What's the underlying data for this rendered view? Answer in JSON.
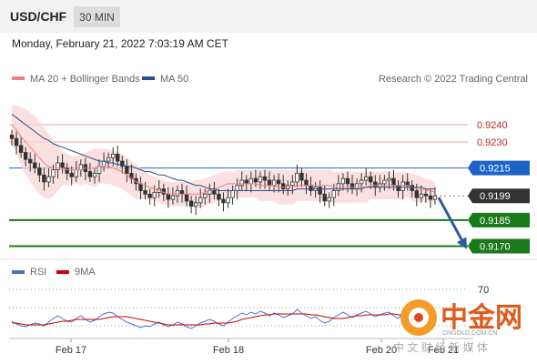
{
  "header": {
    "symbol": "USD/CHF",
    "timeframe": "30 MIN",
    "datetime": "Monday, February 21, 2022 7:03:19 AM CET"
  },
  "colors": {
    "bollinger": "#f08080",
    "bollinger_fill": "#f9d5d5",
    "ma50": "#2b4f8c",
    "resistance": "#f0a0a0",
    "pivot": "#1e64c8",
    "support": "#1a7a1a",
    "last": "#333333",
    "candle_up": "#ffffff",
    "candle_down": "#333333",
    "rsi": "#4a70d0",
    "rsi_ma": "#cc0000",
    "arrow": "#2c5c9c"
  },
  "chart_data": [
    {
      "type": "line",
      "subtype": "candlestick",
      "legend": [
        {
          "name": "MA 20 + Bollinger Bands",
          "color": "#f08080"
        },
        {
          "name": "MA 50",
          "color": "#2b4f8c"
        }
      ],
      "source": "Research © 2022 Trading Central",
      "x_ticks": [
        "Feb 17",
        "Feb 18",
        "Feb 20",
        "Feb 21"
      ],
      "ylim": [
        0.9164,
        0.9262
      ],
      "levels": [
        {
          "value": 0.924,
          "label": "0.9240",
          "kind": "resistance"
        },
        {
          "value": 0.923,
          "label": "0.9230",
          "kind": "resistance"
        },
        {
          "value": 0.9215,
          "label": "0.9215",
          "kind": "pivot"
        },
        {
          "value": 0.9199,
          "label": "0.9199",
          "kind": "last"
        },
        {
          "value": 0.9185,
          "label": "0.9185",
          "kind": "support"
        },
        {
          "value": 0.917,
          "label": "0.9170",
          "kind": "support"
        }
      ],
      "close": [
        0.9232,
        0.9228,
        0.9224,
        0.922,
        0.9218,
        0.9215,
        0.9211,
        0.9207,
        0.921,
        0.9214,
        0.9218,
        0.9215,
        0.9212,
        0.921,
        0.9214,
        0.9217,
        0.9213,
        0.921,
        0.9212,
        0.9216,
        0.9219,
        0.9221,
        0.9223,
        0.9219,
        0.9216,
        0.9212,
        0.9209,
        0.9206,
        0.9202,
        0.92,
        0.9198,
        0.9201,
        0.9203,
        0.92,
        0.9197,
        0.9199,
        0.9202,
        0.92,
        0.9196,
        0.9193,
        0.9195,
        0.9198,
        0.92,
        0.9202,
        0.92,
        0.9197,
        0.9195,
        0.9198,
        0.9202,
        0.9205,
        0.9208,
        0.9206,
        0.9209,
        0.9207,
        0.921,
        0.9208,
        0.9205,
        0.9208,
        0.9206,
        0.9203,
        0.9205,
        0.9207,
        0.9212,
        0.9208,
        0.9205,
        0.9202,
        0.9204,
        0.92,
        0.9196,
        0.9198,
        0.9202,
        0.9206,
        0.9209,
        0.9206,
        0.9203,
        0.9206,
        0.9208,
        0.921,
        0.9207,
        0.9204,
        0.9206,
        0.9208,
        0.9209,
        0.9205,
        0.9202,
        0.9207,
        0.9205,
        0.9202,
        0.9198,
        0.92,
        0.9199,
        0.9197,
        0.9199
      ],
      "ma20": [
        0.924,
        0.9237,
        0.9233,
        0.923,
        0.9227,
        0.9224,
        0.9221,
        0.9218,
        0.9216,
        0.9215,
        0.9215,
        0.9215,
        0.9214,
        0.9214,
        0.9214,
        0.9214,
        0.9215,
        0.9215,
        0.9215,
        0.9216,
        0.9216,
        0.9216,
        0.9215,
        0.9214,
        0.9213,
        0.9211,
        0.9209,
        0.9207,
        0.9206,
        0.9205,
        0.9204,
        0.9203,
        0.9202,
        0.9201,
        0.92,
        0.92,
        0.92,
        0.92,
        0.92,
        0.92,
        0.92,
        0.92,
        0.9201,
        0.9202,
        0.9203,
        0.9204,
        0.9205,
        0.9206,
        0.9206,
        0.9206,
        0.9206,
        0.9206,
        0.9206,
        0.9206,
        0.9205,
        0.9205,
        0.9205,
        0.9205,
        0.9204,
        0.9204,
        0.9204,
        0.9204,
        0.9205,
        0.9205,
        0.9205,
        0.9205,
        0.9205,
        0.9205,
        0.9205,
        0.9205,
        0.9204,
        0.9204,
        0.9204,
        0.9204,
        0.9204,
        0.9204,
        0.9204,
        0.9204,
        0.9205,
        0.9205,
        0.9205,
        0.9205,
        0.9205,
        0.9205,
        0.9205,
        0.9205,
        0.9205,
        0.9204,
        0.9203,
        0.9203,
        0.9202,
        0.9202,
        0.9201
      ],
      "bb_upper": [
        0.9251,
        0.9251,
        0.925,
        0.9249,
        0.9247,
        0.9245,
        0.9242,
        0.9238,
        0.9235,
        0.9231,
        0.9228,
        0.9225,
        0.9223,
        0.9222,
        0.9222,
        0.9223,
        0.9224,
        0.9225,
        0.9226,
        0.9226,
        0.9226,
        0.9226,
        0.9225,
        0.9224,
        0.9223,
        0.9221,
        0.9219,
        0.9217,
        0.9215,
        0.9213,
        0.9211,
        0.921,
        0.9209,
        0.9208,
        0.9207,
        0.9207,
        0.9207,
        0.9207,
        0.9207,
        0.9207,
        0.9208,
        0.9208,
        0.9209,
        0.921,
        0.9211,
        0.9212,
        0.9213,
        0.9213,
        0.9213,
        0.9214,
        0.9214,
        0.9214,
        0.9214,
        0.9214,
        0.9214,
        0.9214,
        0.9214,
        0.9214,
        0.9214,
        0.9214,
        0.9214,
        0.9214,
        0.9214,
        0.9214,
        0.9214,
        0.9214,
        0.9214,
        0.9214,
        0.9214,
        0.9214,
        0.9213,
        0.9213,
        0.9213,
        0.9213,
        0.9213,
        0.9213,
        0.9213,
        0.9213,
        0.9213,
        0.9213,
        0.9213,
        0.9213,
        0.9213,
        0.9213,
        0.9213,
        0.9213,
        0.9212,
        0.9212,
        0.9211,
        0.921,
        0.9209,
        0.9208,
        0.9207
      ],
      "bb_lower": [
        0.9229,
        0.9223,
        0.9216,
        0.9211,
        0.9207,
        0.9203,
        0.92,
        0.9198,
        0.9197,
        0.9199,
        0.9202,
        0.9205,
        0.9205,
        0.9206,
        0.9206,
        0.9205,
        0.9206,
        0.9205,
        0.9204,
        0.9206,
        0.9206,
        0.9206,
        0.9205,
        0.9204,
        0.9203,
        0.9201,
        0.9199,
        0.9197,
        0.9197,
        0.9197,
        0.9197,
        0.9196,
        0.9195,
        0.9194,
        0.9193,
        0.9193,
        0.9193,
        0.9193,
        0.9193,
        0.9193,
        0.9192,
        0.9192,
        0.9193,
        0.9194,
        0.9195,
        0.9196,
        0.9197,
        0.9199,
        0.9199,
        0.9198,
        0.9198,
        0.9198,
        0.9198,
        0.9198,
        0.9196,
        0.9196,
        0.9196,
        0.9196,
        0.9194,
        0.9194,
        0.9194,
        0.9194,
        0.9196,
        0.9196,
        0.9196,
        0.9196,
        0.9196,
        0.9196,
        0.9196,
        0.9196,
        0.9195,
        0.9195,
        0.9195,
        0.9195,
        0.9195,
        0.9195,
        0.9195,
        0.9195,
        0.9197,
        0.9197,
        0.9197,
        0.9197,
        0.9197,
        0.9197,
        0.9197,
        0.9197,
        0.9198,
        0.9196,
        0.9195,
        0.9196,
        0.9195,
        0.9196,
        0.9195
      ],
      "ma50": [
        0.9246,
        0.9244,
        0.9242,
        0.924,
        0.9238,
        0.9236,
        0.9234,
        0.9232,
        0.9231,
        0.9229,
        0.9228,
        0.9227,
        0.9226,
        0.9225,
        0.9224,
        0.9223,
        0.9222,
        0.9221,
        0.922,
        0.9219,
        0.9219,
        0.9218,
        0.9218,
        0.9217,
        0.9217,
        0.9216,
        0.9216,
        0.9215,
        0.9214,
        0.9213,
        0.9213,
        0.9212,
        0.9211,
        0.9211,
        0.921,
        0.9209,
        0.9208,
        0.9208,
        0.9207,
        0.9206,
        0.9205,
        0.9205,
        0.9204,
        0.9203,
        0.9203,
        0.9202,
        0.9202,
        0.9202,
        0.9202,
        0.9202,
        0.9202,
        0.9202,
        0.9202,
        0.9202,
        0.9202,
        0.9202,
        0.9202,
        0.9202,
        0.9202,
        0.9202,
        0.9202,
        0.9202,
        0.9203,
        0.9203,
        0.9203,
        0.9203,
        0.9203,
        0.9203,
        0.9203,
        0.9203,
        0.9203,
        0.9203,
        0.9203,
        0.9203,
        0.9203,
        0.9203,
        0.9203,
        0.9204,
        0.9204,
        0.9204,
        0.9204,
        0.9204,
        0.9204,
        0.9204,
        0.9204,
        0.9204,
        0.9204,
        0.9204,
        0.9204,
        0.9204,
        0.9203,
        0.9203,
        0.9203
      ],
      "forecast": {
        "from": 0.9199,
        "to": 0.917
      }
    },
    {
      "type": "line",
      "legend": [
        {
          "name": "RSI",
          "color": "#4a70d0"
        },
        {
          "name": "9MA",
          "color": "#cc0000"
        }
      ],
      "ylim": [
        20,
        80
      ],
      "y_ticks": [
        "70"
      ],
      "guides": [
        70,
        50,
        30
      ],
      "rsi": [
        35,
        32,
        30,
        29,
        31,
        33,
        32,
        30,
        34,
        38,
        41,
        38,
        35,
        34,
        38,
        41,
        37,
        34,
        36,
        40,
        43,
        45,
        44,
        40,
        37,
        34,
        32,
        30,
        28,
        30,
        29,
        32,
        34,
        31,
        29,
        31,
        34,
        32,
        29,
        27,
        30,
        33,
        35,
        37,
        35,
        32,
        30,
        34,
        38,
        41,
        44,
        42,
        45,
        43,
        46,
        44,
        41,
        44,
        42,
        39,
        41,
        43,
        48,
        44,
        41,
        38,
        40,
        36,
        33,
        35,
        39,
        42,
        45,
        42,
        39,
        42,
        44,
        46,
        43,
        40,
        42,
        44,
        45,
        41,
        38,
        43,
        41,
        38,
        35,
        37,
        36,
        34,
        36
      ],
      "rsi_ma": [
        33,
        33,
        32,
        31,
        31,
        31,
        31,
        31,
        32,
        33,
        34,
        35,
        35,
        36,
        37,
        37,
        37,
        37,
        37,
        37,
        38,
        39,
        40,
        40,
        40,
        40,
        39,
        38,
        37,
        36,
        35,
        34,
        33,
        32,
        31,
        31,
        31,
        31,
        31,
        31,
        31,
        31,
        32,
        32,
        33,
        33,
        33,
        33,
        34,
        35,
        37,
        38,
        39,
        40,
        41,
        42,
        42,
        43,
        43,
        43,
        43,
        43,
        43,
        43,
        43,
        42,
        42,
        41,
        40,
        39,
        38,
        38,
        38,
        39,
        40,
        41,
        41,
        42,
        42,
        42,
        42,
        42,
        43,
        43,
        42,
        42,
        42,
        41,
        40,
        39,
        38,
        37,
        37
      ]
    }
  ],
  "watermark": {
    "name": "中金网",
    "domain": "CNGOLD.COM.CN",
    "tagline": "中 文 财 经 新 媒 体"
  }
}
